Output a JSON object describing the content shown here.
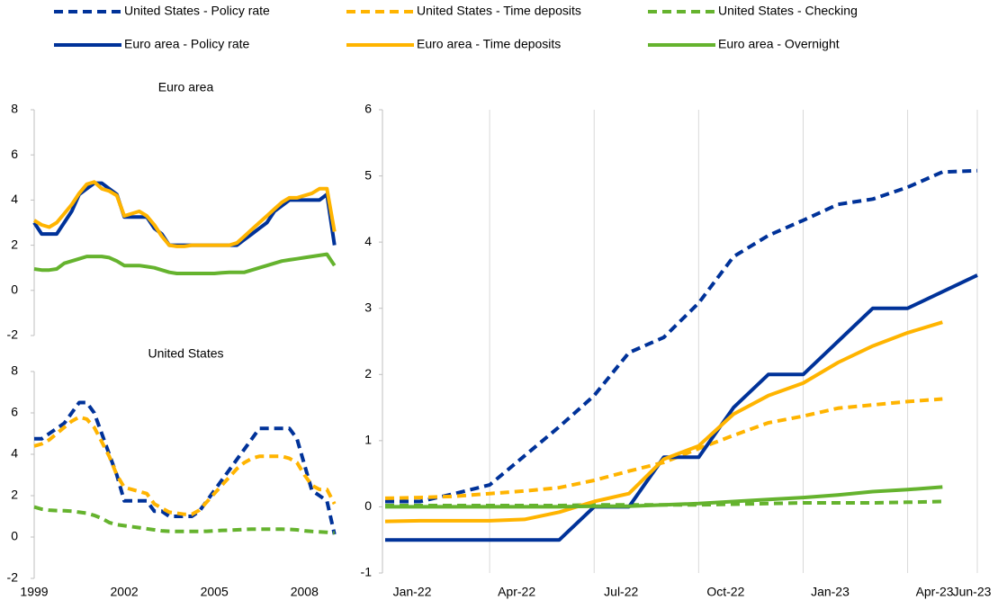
{
  "chart_data": [
    {
      "type": "line",
      "title": "Euro area",
      "x": [
        1999,
        1999.25,
        1999.5,
        1999.75,
        2000,
        2000.25,
        2000.5,
        2000.75,
        2001,
        2001.25,
        2001.5,
        2001.75,
        2002,
        2002.25,
        2002.5,
        2002.75,
        2003,
        2003.25,
        2003.5,
        2003.75,
        2004,
        2004.25,
        2004.5,
        2004.75,
        2005,
        2005.25,
        2005.5,
        2005.75,
        2006,
        2006.25,
        2006.5,
        2006.75,
        2007,
        2007.25,
        2007.5,
        2007.75,
        2008,
        2008.25,
        2008.5,
        2008.75,
        2009
      ],
      "xlim": [
        1999,
        2009.1
      ],
      "ylim": [
        -2,
        8
      ],
      "yticks": [
        -2,
        0,
        2,
        4,
        6,
        8
      ],
      "series": [
        {
          "color": "#003299",
          "dashed": false,
          "values": [
            3.0,
            2.5,
            2.5,
            2.5,
            3.0,
            3.5,
            4.25,
            4.5,
            4.75,
            4.75,
            4.5,
            4.25,
            3.25,
            3.25,
            3.25,
            3.25,
            2.75,
            2.5,
            2.0,
            2.0,
            2.0,
            2.0,
            2.0,
            2.0,
            2.0,
            2.0,
            2.0,
            2.0,
            2.25,
            2.5,
            2.75,
            3.0,
            3.5,
            3.75,
            4.0,
            4.0,
            4.0,
            4.0,
            4.0,
            4.25,
            2.0
          ]
        },
        {
          "color": "#ffb400",
          "dashed": false,
          "values": [
            3.1,
            2.9,
            2.8,
            3.0,
            3.4,
            3.8,
            4.3,
            4.7,
            4.8,
            4.5,
            4.4,
            4.2,
            3.3,
            3.4,
            3.5,
            3.3,
            2.9,
            2.4,
            2.0,
            1.95,
            1.95,
            2.0,
            2.0,
            2.0,
            2.0,
            2.0,
            2.0,
            2.1,
            2.4,
            2.7,
            3.0,
            3.3,
            3.6,
            3.9,
            4.1,
            4.1,
            4.2,
            4.3,
            4.5,
            4.5,
            2.6
          ]
        },
        {
          "color": "#65b32e",
          "dashed": false,
          "values": [
            0.95,
            0.9,
            0.9,
            0.95,
            1.2,
            1.3,
            1.4,
            1.5,
            1.5,
            1.5,
            1.45,
            1.3,
            1.1,
            1.1,
            1.1,
            1.05,
            1.0,
            0.9,
            0.8,
            0.75,
            0.75,
            0.75,
            0.75,
            0.75,
            0.75,
            0.78,
            0.8,
            0.8,
            0.8,
            0.9,
            1.0,
            1.1,
            1.2,
            1.3,
            1.35,
            1.4,
            1.45,
            1.5,
            1.55,
            1.6,
            1.1
          ]
        }
      ]
    },
    {
      "type": "line",
      "title": "United States",
      "x": [
        1999,
        1999.25,
        1999.5,
        1999.75,
        2000,
        2000.25,
        2000.5,
        2000.75,
        2001,
        2001.25,
        2001.5,
        2001.75,
        2002,
        2002.25,
        2002.5,
        2002.75,
        2003,
        2003.25,
        2003.5,
        2003.75,
        2004,
        2004.25,
        2004.5,
        2004.75,
        2005,
        2005.25,
        2005.5,
        2005.75,
        2006,
        2006.25,
        2006.5,
        2006.75,
        2007,
        2007.25,
        2007.5,
        2007.75,
        2008,
        2008.25,
        2008.5,
        2008.75,
        2009
      ],
      "xlim": [
        1999,
        2009.1
      ],
      "xticks": [
        1999,
        2002,
        2005,
        2008
      ],
      "ylim": [
        -2,
        8
      ],
      "yticks": [
        -2,
        0,
        2,
        4,
        6,
        8
      ],
      "series": [
        {
          "color": "#003299",
          "dashed": true,
          "values": [
            4.75,
            4.75,
            5.0,
            5.25,
            5.5,
            6.0,
            6.5,
            6.5,
            6.0,
            5.0,
            4.0,
            3.0,
            1.75,
            1.75,
            1.75,
            1.75,
            1.25,
            1.25,
            1.0,
            1.0,
            1.0,
            1.0,
            1.25,
            1.75,
            2.25,
            2.75,
            3.25,
            3.75,
            4.25,
            4.75,
            5.25,
            5.25,
            5.25,
            5.25,
            5.25,
            4.75,
            3.5,
            2.25,
            2.0,
            1.75,
            0.13
          ]
        },
        {
          "color": "#ffb400",
          "dashed": true,
          "values": [
            4.4,
            4.5,
            4.7,
            5.0,
            5.3,
            5.6,
            5.8,
            5.7,
            5.3,
            4.6,
            3.9,
            3.0,
            2.4,
            2.3,
            2.2,
            2.1,
            1.6,
            1.4,
            1.2,
            1.15,
            1.1,
            1.1,
            1.3,
            1.7,
            2.1,
            2.5,
            2.9,
            3.3,
            3.6,
            3.8,
            3.9,
            3.9,
            3.9,
            3.9,
            3.8,
            3.6,
            3.0,
            2.5,
            2.3,
            2.3,
            1.6
          ]
        },
        {
          "color": "#65b32e",
          "dashed": true,
          "values": [
            1.45,
            1.35,
            1.3,
            1.28,
            1.27,
            1.25,
            1.2,
            1.15,
            1.05,
            0.9,
            0.7,
            0.6,
            0.55,
            0.5,
            0.45,
            0.4,
            0.35,
            0.3,
            0.28,
            0.27,
            0.27,
            0.27,
            0.27,
            0.28,
            0.3,
            0.32,
            0.33,
            0.35,
            0.37,
            0.38,
            0.38,
            0.38,
            0.38,
            0.38,
            0.37,
            0.35,
            0.3,
            0.27,
            0.25,
            0.23,
            0.2
          ]
        }
      ]
    },
    {
      "type": "line",
      "categories": [
        "Jan-22",
        null,
        null,
        "Apr-22",
        null,
        null,
        "Jul-22",
        null,
        null,
        "Oct-22",
        null,
        null,
        "Jan-23",
        null,
        null,
        "Apr-23",
        null,
        "Jun-23"
      ],
      "ylim": [
        -1,
        6
      ],
      "yticks": [
        -1,
        0,
        1,
        2,
        3,
        4,
        5,
        6
      ],
      "grid": "x",
      "legend": "top",
      "series": [
        {
          "name": "United States - Policy rate",
          "color": "#003299",
          "dashed": true,
          "values": [
            0.08,
            0.08,
            0.2,
            0.33,
            0.77,
            1.21,
            1.68,
            2.33,
            2.56,
            3.08,
            3.78,
            4.1,
            4.33,
            4.57,
            4.65,
            4.83,
            5.06,
            5.08
          ]
        },
        {
          "name": "United States - Time deposits",
          "color": "#ffb400",
          "dashed": true,
          "values": [
            0.13,
            0.14,
            0.16,
            0.2,
            0.24,
            0.29,
            0.4,
            0.54,
            0.67,
            0.88,
            1.08,
            1.27,
            1.37,
            1.49,
            1.54,
            1.59,
            1.63,
            null
          ]
        },
        {
          "name": "United States - Checking",
          "color": "#65b32e",
          "dashed": true,
          "values": [
            0.02,
            0.02,
            0.02,
            0.02,
            0.02,
            0.02,
            0.03,
            0.03,
            0.03,
            0.03,
            0.04,
            0.05,
            0.06,
            0.06,
            0.06,
            0.07,
            0.08,
            null
          ]
        },
        {
          "name": "Euro area - Policy rate",
          "color": "#003299",
          "dashed": false,
          "values": [
            -0.5,
            -0.5,
            -0.5,
            -0.5,
            -0.5,
            -0.5,
            0,
            0,
            0.75,
            0.75,
            1.5,
            2,
            2,
            2.5,
            3,
            3,
            3.25,
            3.5
          ]
        },
        {
          "name": "Euro area - Time deposits",
          "color": "#ffb400",
          "dashed": false,
          "values": [
            -0.22,
            -0.21,
            -0.21,
            -0.21,
            -0.19,
            -0.08,
            0.08,
            0.2,
            0.72,
            0.92,
            1.4,
            1.68,
            1.87,
            2.18,
            2.43,
            2.63,
            2.79,
            null
          ]
        },
        {
          "name": "Euro area - Overnight",
          "color": "#65b32e",
          "dashed": false,
          "values": [
            0,
            0,
            0,
            0,
            0,
            0,
            0.01,
            0.01,
            0.03,
            0.05,
            0.08,
            0.11,
            0.14,
            0.18,
            0.23,
            0.26,
            0.3,
            null
          ]
        }
      ]
    }
  ]
}
